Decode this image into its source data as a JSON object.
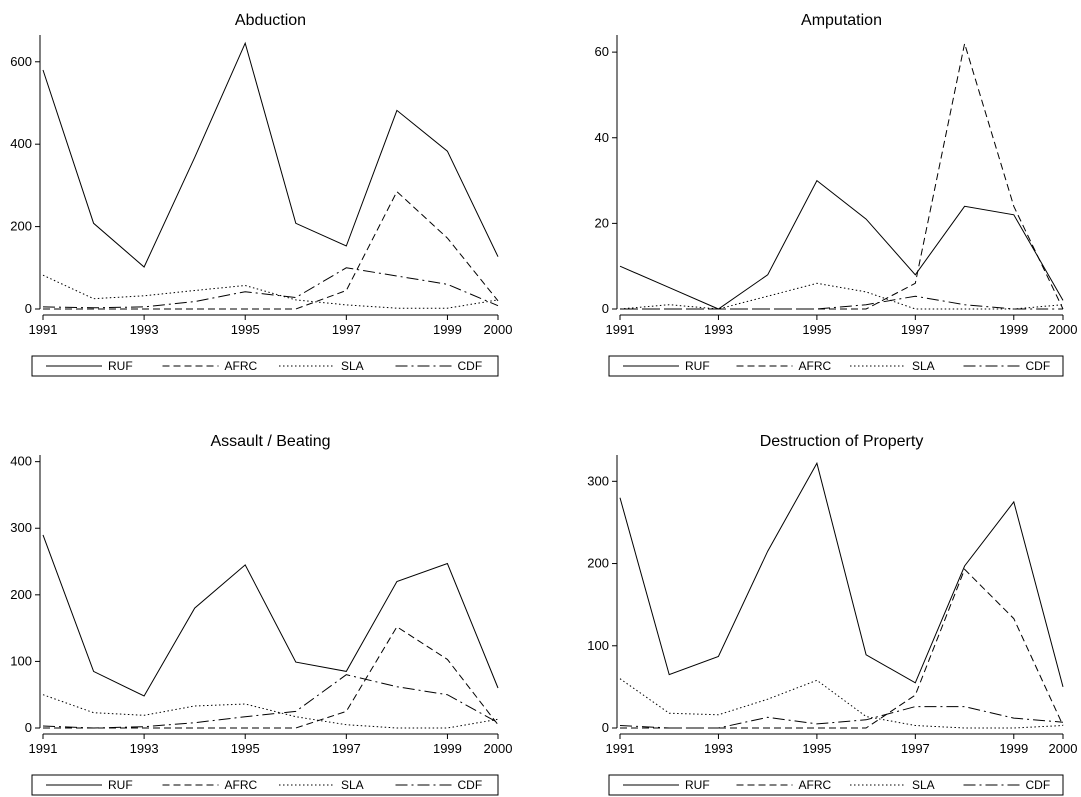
{
  "chart_data": [
    {
      "type": "line",
      "title": "Abduction",
      "x": [
        1991,
        1992,
        1993,
        1994,
        1995,
        1996,
        1997,
        1998,
        1999,
        2000
      ],
      "xticks": [
        "1991",
        "1993",
        "1995",
        "1997",
        "1999",
        "2000"
      ],
      "yticks": [
        "0",
        "200",
        "400",
        "600"
      ],
      "ylim": [
        0,
        665
      ],
      "series": [
        {
          "name": "RUF",
          "values": [
            580,
            208,
            102,
            368,
            645,
            208,
            153,
            482,
            383,
            127
          ]
        },
        {
          "name": "AFRC",
          "values": [
            0,
            0,
            0,
            0,
            0,
            0,
            45,
            285,
            172,
            20
          ]
        },
        {
          "name": "SLA",
          "values": [
            82,
            25,
            32,
            45,
            57,
            22,
            10,
            2,
            2,
            22
          ]
        },
        {
          "name": "CDF",
          "values": [
            5,
            3,
            5,
            18,
            42,
            28,
            100,
            80,
            60,
            8
          ]
        }
      ]
    },
    {
      "type": "line",
      "title": "Amputation",
      "x": [
        1991,
        1992,
        1993,
        1994,
        1995,
        1996,
        1997,
        1998,
        1999,
        2000
      ],
      "xticks": [
        "1991",
        "1993",
        "1995",
        "1997",
        "1999",
        "2000"
      ],
      "yticks": [
        "0",
        "20",
        "40",
        "60"
      ],
      "ylim": [
        0,
        64
      ],
      "series": [
        {
          "name": "RUF",
          "values": [
            10,
            5,
            0,
            8,
            30,
            21,
            8,
            24,
            22,
            2
          ]
        },
        {
          "name": "AFRC",
          "values": [
            0,
            0,
            0,
            0,
            0,
            0,
            6,
            62,
            24,
            0
          ]
        },
        {
          "name": "SLA",
          "values": [
            0,
            1,
            0,
            3,
            6,
            4,
            0,
            0,
            0,
            1
          ]
        },
        {
          "name": "CDF",
          "values": [
            0,
            0,
            0,
            0,
            0,
            1,
            3,
            1,
            0,
            0
          ]
        }
      ]
    },
    {
      "type": "line",
      "title": "Assault / Beating",
      "x": [
        1991,
        1992,
        1993,
        1994,
        1995,
        1996,
        1997,
        1998,
        1999,
        2000
      ],
      "xticks": [
        "1991",
        "1993",
        "1995",
        "1997",
        "1999",
        "2000"
      ],
      "yticks": [
        "0",
        "100",
        "200",
        "300",
        "400"
      ],
      "ylim": [
        0,
        410
      ],
      "series": [
        {
          "name": "RUF",
          "values": [
            290,
            85,
            48,
            180,
            245,
            99,
            85,
            220,
            247,
            60
          ]
        },
        {
          "name": "AFRC",
          "values": [
            0,
            0,
            0,
            0,
            0,
            0,
            25,
            152,
            103,
            5
          ]
        },
        {
          "name": "SLA",
          "values": [
            50,
            23,
            19,
            33,
            36,
            17,
            5,
            0,
            0,
            13
          ]
        },
        {
          "name": "CDF",
          "values": [
            3,
            0,
            2,
            8,
            17,
            25,
            80,
            62,
            50,
            8
          ]
        }
      ]
    },
    {
      "type": "line",
      "title": "Destruction of Property",
      "x": [
        1991,
        1992,
        1993,
        1994,
        1995,
        1996,
        1997,
        1998,
        1999,
        2000
      ],
      "xticks": [
        "1991",
        "1993",
        "1995",
        "1997",
        "1999",
        "2000"
      ],
      "yticks": [
        "0",
        "100",
        "200",
        "300"
      ],
      "ylim": [
        0,
        332
      ],
      "series": [
        {
          "name": "RUF",
          "values": [
            280,
            65,
            87,
            215,
            322,
            89,
            55,
            197,
            275,
            50
          ]
        },
        {
          "name": "AFRC",
          "values": [
            0,
            0,
            0,
            0,
            0,
            0,
            40,
            193,
            133,
            3
          ]
        },
        {
          "name": "SLA",
          "values": [
            60,
            18,
            16,
            35,
            58,
            14,
            3,
            0,
            0,
            3
          ]
        },
        {
          "name": "CDF",
          "values": [
            3,
            0,
            0,
            13,
            5,
            10,
            26,
            26,
            12,
            7
          ]
        }
      ]
    }
  ]
}
